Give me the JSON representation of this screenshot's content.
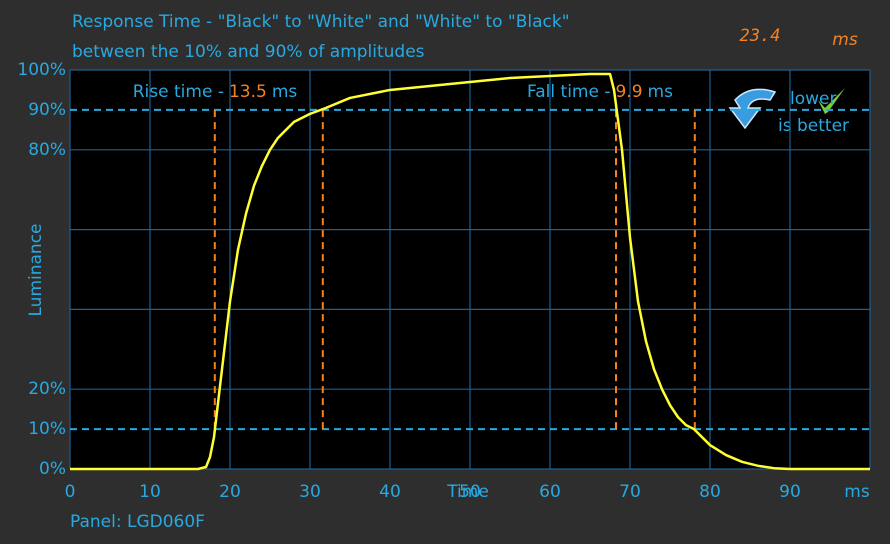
{
  "chart_data": {
    "type": "line",
    "title": "Response Time - \"Black\" to \"White\" and \"White\" to \"Black\"",
    "subtitle": "between the 10% and 90% of amplitudes",
    "total": {
      "value": 23.4,
      "unit": "ms"
    },
    "ylabel": "Luminance",
    "xlabel": "Time",
    "x_unit": "ms",
    "footer": "Panel: LGD060F",
    "badge": {
      "top": "lower",
      "bottom": "is better"
    },
    "annotations": [
      {
        "label": "Rise time -",
        "value": 13.5,
        "unit": "ms"
      },
      {
        "label": "Fall time -",
        "value": 9.9,
        "unit": "ms"
      }
    ],
    "thresholds": [
      10,
      90
    ],
    "threshold_color": "#29a9e1",
    "markers_x": [
      18.1,
      31.6,
      68.25,
      78.1
    ],
    "marker_color": "#f58220",
    "xlim": [
      0,
      100
    ],
    "ylim": [
      0,
      100
    ],
    "xticks": [
      0,
      10,
      20,
      30,
      40,
      50,
      60,
      70,
      80,
      90
    ],
    "yticks": [
      {
        "value": 0,
        "label": "0%"
      },
      {
        "value": 10,
        "label": "10%"
      },
      {
        "value": 20,
        "label": "20%"
      },
      {
        "value": 80,
        "label": "80%"
      },
      {
        "value": 90,
        "label": "90%"
      },
      {
        "value": 100,
        "label": "100%"
      }
    ],
    "ygrid": [
      0,
      20,
      40,
      60,
      80,
      100
    ],
    "xgrid": [
      0,
      10,
      20,
      30,
      40,
      50,
      60,
      70,
      80,
      90,
      100
    ],
    "grid_color": "#1d5f91",
    "x": [
      0,
      16,
      17,
      17.5,
      18,
      19,
      20,
      21,
      22,
      23,
      24,
      25,
      26,
      28,
      30,
      32,
      35,
      40,
      45,
      50,
      55,
      60,
      65,
      67,
      67.5,
      68,
      69,
      70,
      71,
      72,
      73,
      74,
      75,
      76,
      77,
      78,
      80,
      82,
      84,
      86,
      88,
      90,
      100
    ],
    "series": [
      {
        "color": "#ffff33",
        "values": [
          0,
          0,
          0.5,
          3,
          8,
          25,
          42,
          55,
          64,
          71,
          76,
          80,
          83,
          87,
          89,
          90.5,
          93,
          95,
          96,
          97,
          98,
          98.5,
          99,
          99,
          99,
          95,
          80,
          58,
          42,
          32,
          25,
          20,
          16,
          13,
          11,
          10,
          6,
          3.5,
          1.8,
          0.8,
          0.2,
          0,
          0
        ]
      }
    ]
  }
}
